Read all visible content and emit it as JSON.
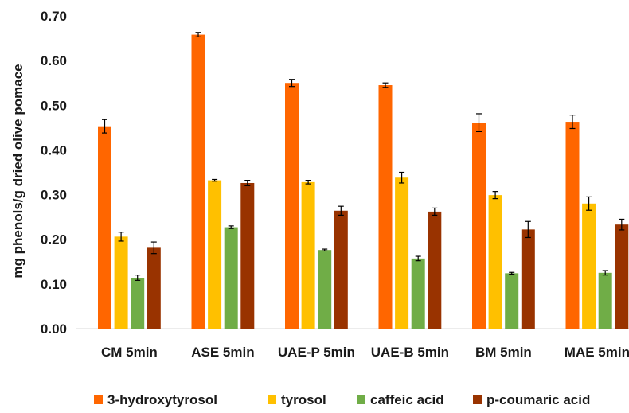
{
  "chart_data": {
    "type": "bar",
    "title": "",
    "ylabel": "mg phenols/g dried olive pomace",
    "xlabel": "",
    "ylim": [
      0,
      0.7
    ],
    "yticks": [
      "0.00",
      "0.10",
      "0.20",
      "0.30",
      "0.40",
      "0.50",
      "0.60",
      "0.70"
    ],
    "categories": [
      "CM 5min",
      "ASE 5min",
      "UAE-P 5min",
      "UAE-B 5min",
      "BM 5min",
      "MAE 5min"
    ],
    "series": [
      {
        "name": "3-hydroxytyrosol",
        "color": "#ff6600",
        "values": [
          0.453,
          0.658,
          0.55,
          0.545,
          0.461,
          0.463
        ],
        "errors": [
          0.015,
          0.005,
          0.008,
          0.005,
          0.02,
          0.015
        ]
      },
      {
        "name": "tyrosol",
        "color": "#ffc000",
        "values": [
          0.206,
          0.332,
          0.328,
          0.338,
          0.299,
          0.28
        ],
        "errors": [
          0.01,
          0.002,
          0.004,
          0.012,
          0.008,
          0.015
        ]
      },
      {
        "name": "caffeic acid",
        "color": "#70ad47",
        "values": [
          0.114,
          0.227,
          0.176,
          0.157,
          0.124,
          0.125
        ],
        "errors": [
          0.006,
          0.003,
          0.002,
          0.005,
          0.002,
          0.005
        ]
      },
      {
        "name": "p-coumaric acid",
        "color": "#993300",
        "values": [
          0.181,
          0.326,
          0.264,
          0.262,
          0.222,
          0.233
        ],
        "errors": [
          0.013,
          0.006,
          0.01,
          0.008,
          0.018,
          0.012
        ]
      }
    ],
    "legend_position": "bottom",
    "grid": false
  }
}
